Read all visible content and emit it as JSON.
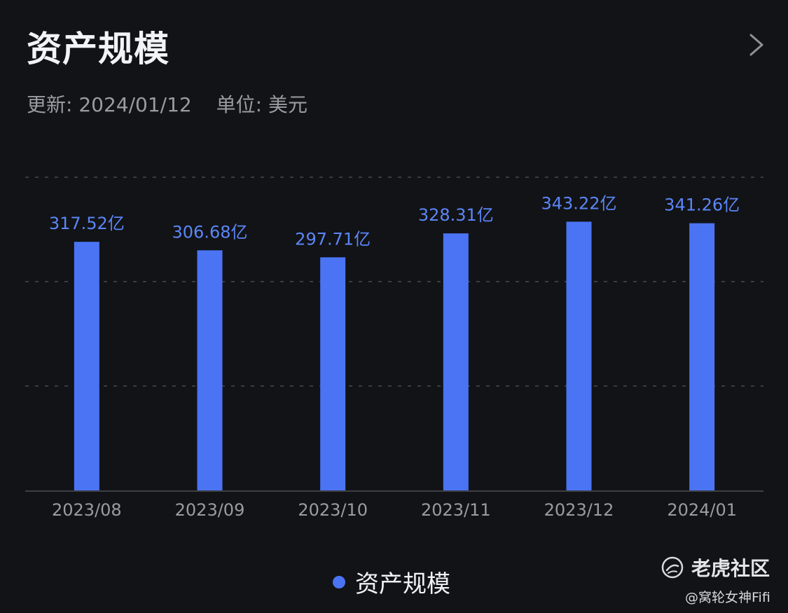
{
  "header": {
    "title": "资产规模",
    "updated": "更新: 2024/01/12",
    "unit": "单位: 美元"
  },
  "chart_data": {
    "type": "bar",
    "categories": [
      "2023/08",
      "2023/09",
      "2023/10",
      "2023/11",
      "2023/12",
      "2024/01"
    ],
    "series": [
      {
        "name": "资产规模",
        "values": [
          317.52,
          306.68,
          297.71,
          328.31,
          343.22,
          341.26
        ],
        "labels": [
          "317.52亿",
          "306.68亿",
          "297.71亿",
          "328.31亿",
          "343.22亿",
          "341.26亿"
        ]
      }
    ],
    "ylim": [
      0,
      400
    ],
    "grid": true,
    "legend": "bottom-center"
  },
  "legend": {
    "label": "资产规模"
  },
  "watermark": {
    "brand": "老虎社区",
    "user": "@窝轮女神Fifi",
    "icon": "tiger-community-icon"
  },
  "colors": {
    "bar": "#4a74f4",
    "bar_label": "#5b86f7",
    "background": "#121316",
    "axis_text": "#9a9ca3"
  },
  "icons": {
    "more": "chevron-right-icon"
  }
}
